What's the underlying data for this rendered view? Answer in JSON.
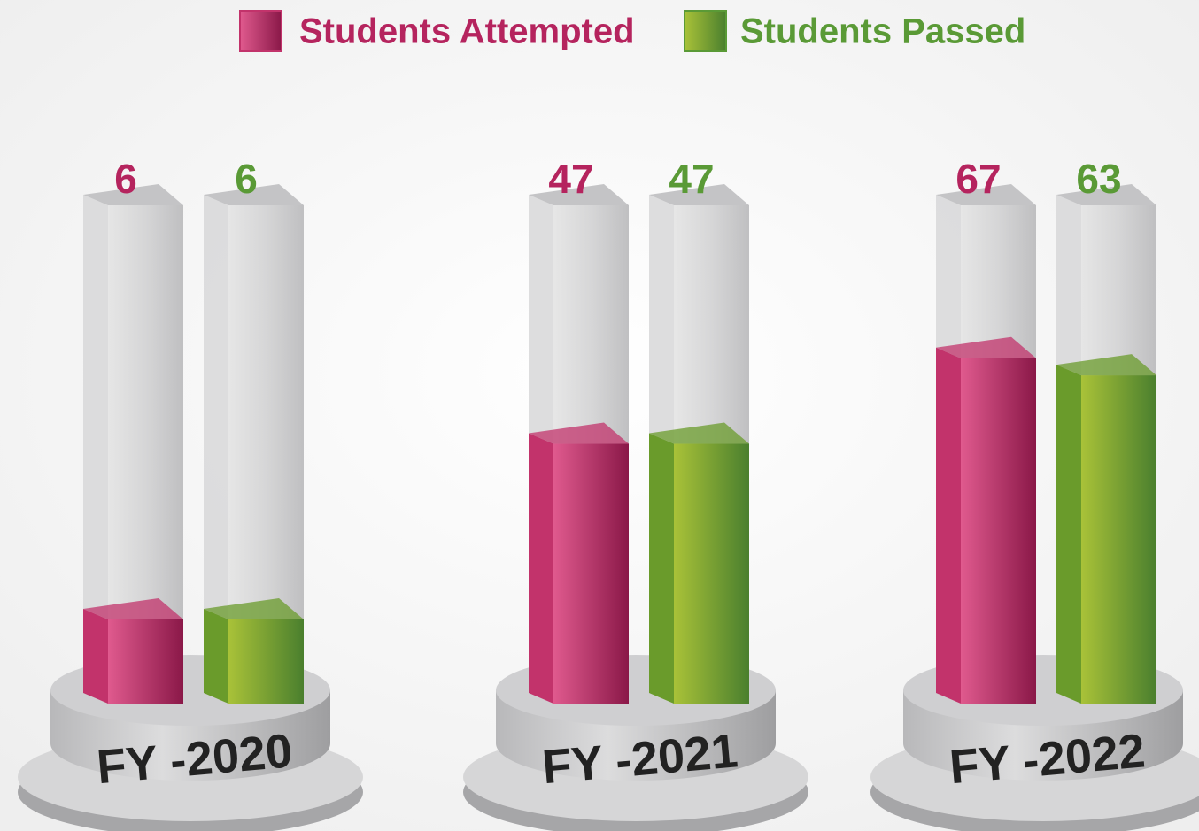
{
  "chart_data": {
    "type": "bar",
    "categories": [
      "FY -2020",
      "FY -2021",
      "FY -2022"
    ],
    "series": [
      {
        "name": "Students Attempted",
        "color": "#c2336b",
        "values": [
          6,
          47,
          67
        ]
      },
      {
        "name": "Students Passed",
        "color": "#6a9b2b",
        "values": [
          6,
          47,
          63
        ]
      }
    ],
    "legend": "top"
  }
}
